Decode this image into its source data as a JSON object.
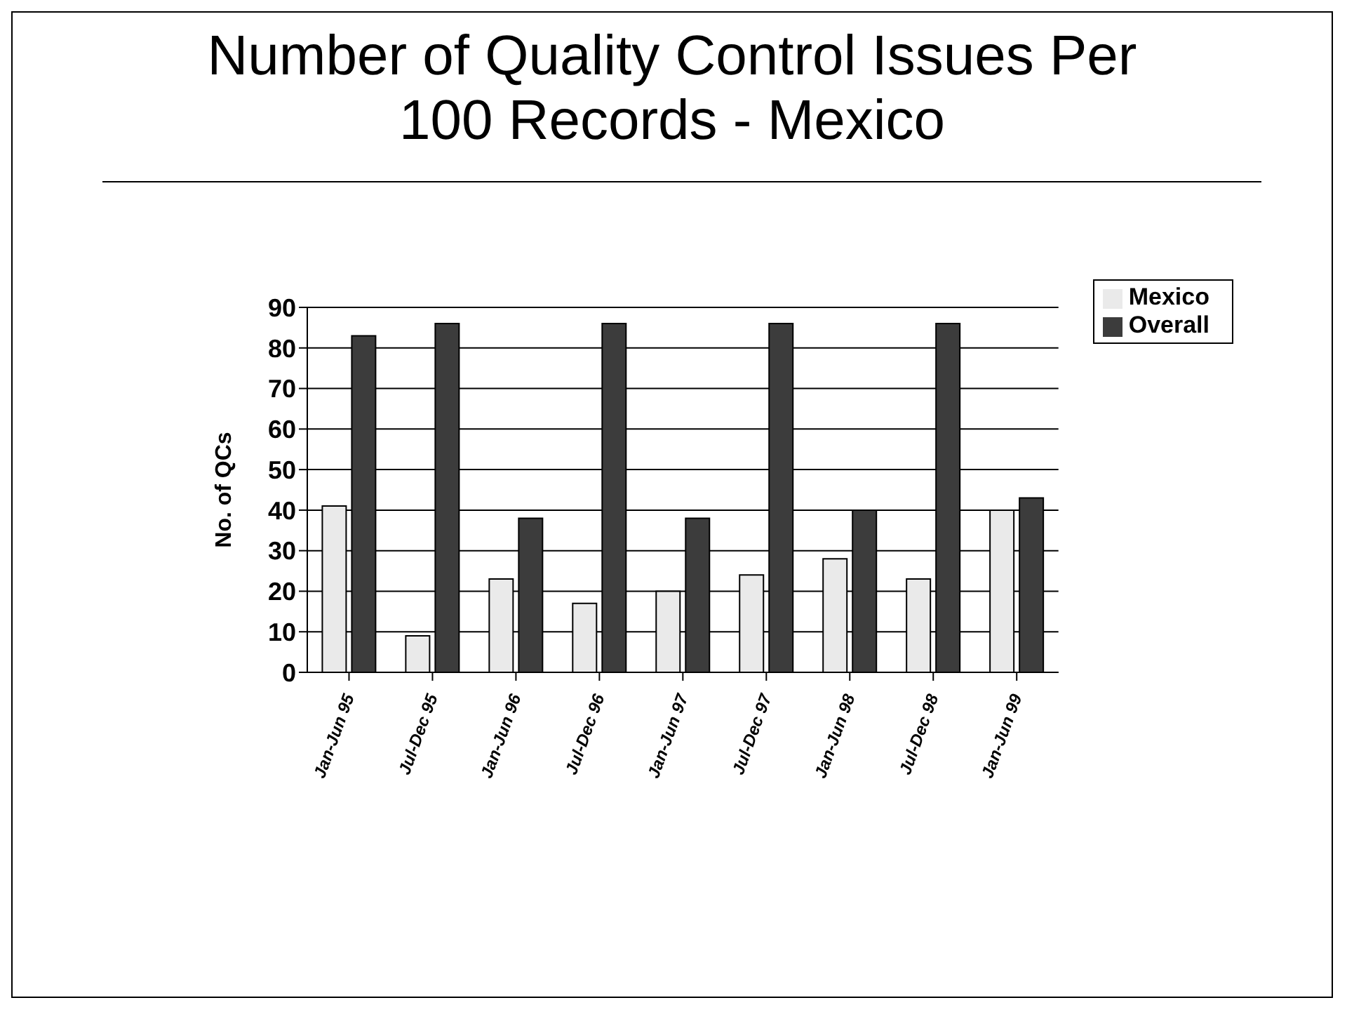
{
  "chart_data": {
    "type": "bar",
    "title": "Number of Quality Control Issues Per 100 Records - Mexico",
    "ylabel": "No. of QCs",
    "categories": [
      "Jan-Jun 95",
      "Jul-Dec 95",
      "Jan-Jun 96",
      "Jul-Dec 96",
      "Jan-Jun 97",
      "Jul-Dec 97",
      "Jan-Jun 98",
      "Jul-Dec 98",
      "Jan-Jun 99"
    ],
    "series": [
      {
        "name": "Mexico",
        "color": "#eaeaea",
        "values": [
          41,
          9,
          23,
          17,
          20,
          24,
          28,
          23,
          40
        ]
      },
      {
        "name": "Overall",
        "color": "#3c3c3c",
        "values": [
          83,
          86,
          38,
          86,
          38,
          86,
          40,
          86,
          43
        ]
      }
    ],
    "ylim": [
      0,
      90
    ],
    "yticks": [
      0,
      10,
      20,
      30,
      40,
      50,
      60,
      70,
      80,
      90
    ],
    "grid": "y",
    "legend": "top right"
  }
}
